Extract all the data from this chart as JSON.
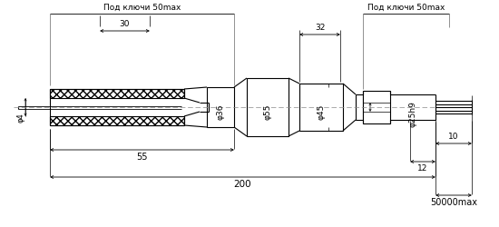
{
  "bg_color": "#ffffff",
  "line_color": "#000000",
  "annotations": {
    "pod_klyuchi_left": "Под ключи 50mах",
    "pod_klyuchi_right": "Под ключи 50mах",
    "d36": "φ36",
    "d55": "φ55",
    "d45": "φ45",
    "d4": "φ4",
    "d25h9": "φ25h9",
    "dim_30": "30",
    "dim_55": "55",
    "dim_32": "32",
    "dim_200": "200",
    "dim_12": "12",
    "dim_10": "10",
    "dim_50000": "50000mах"
  }
}
